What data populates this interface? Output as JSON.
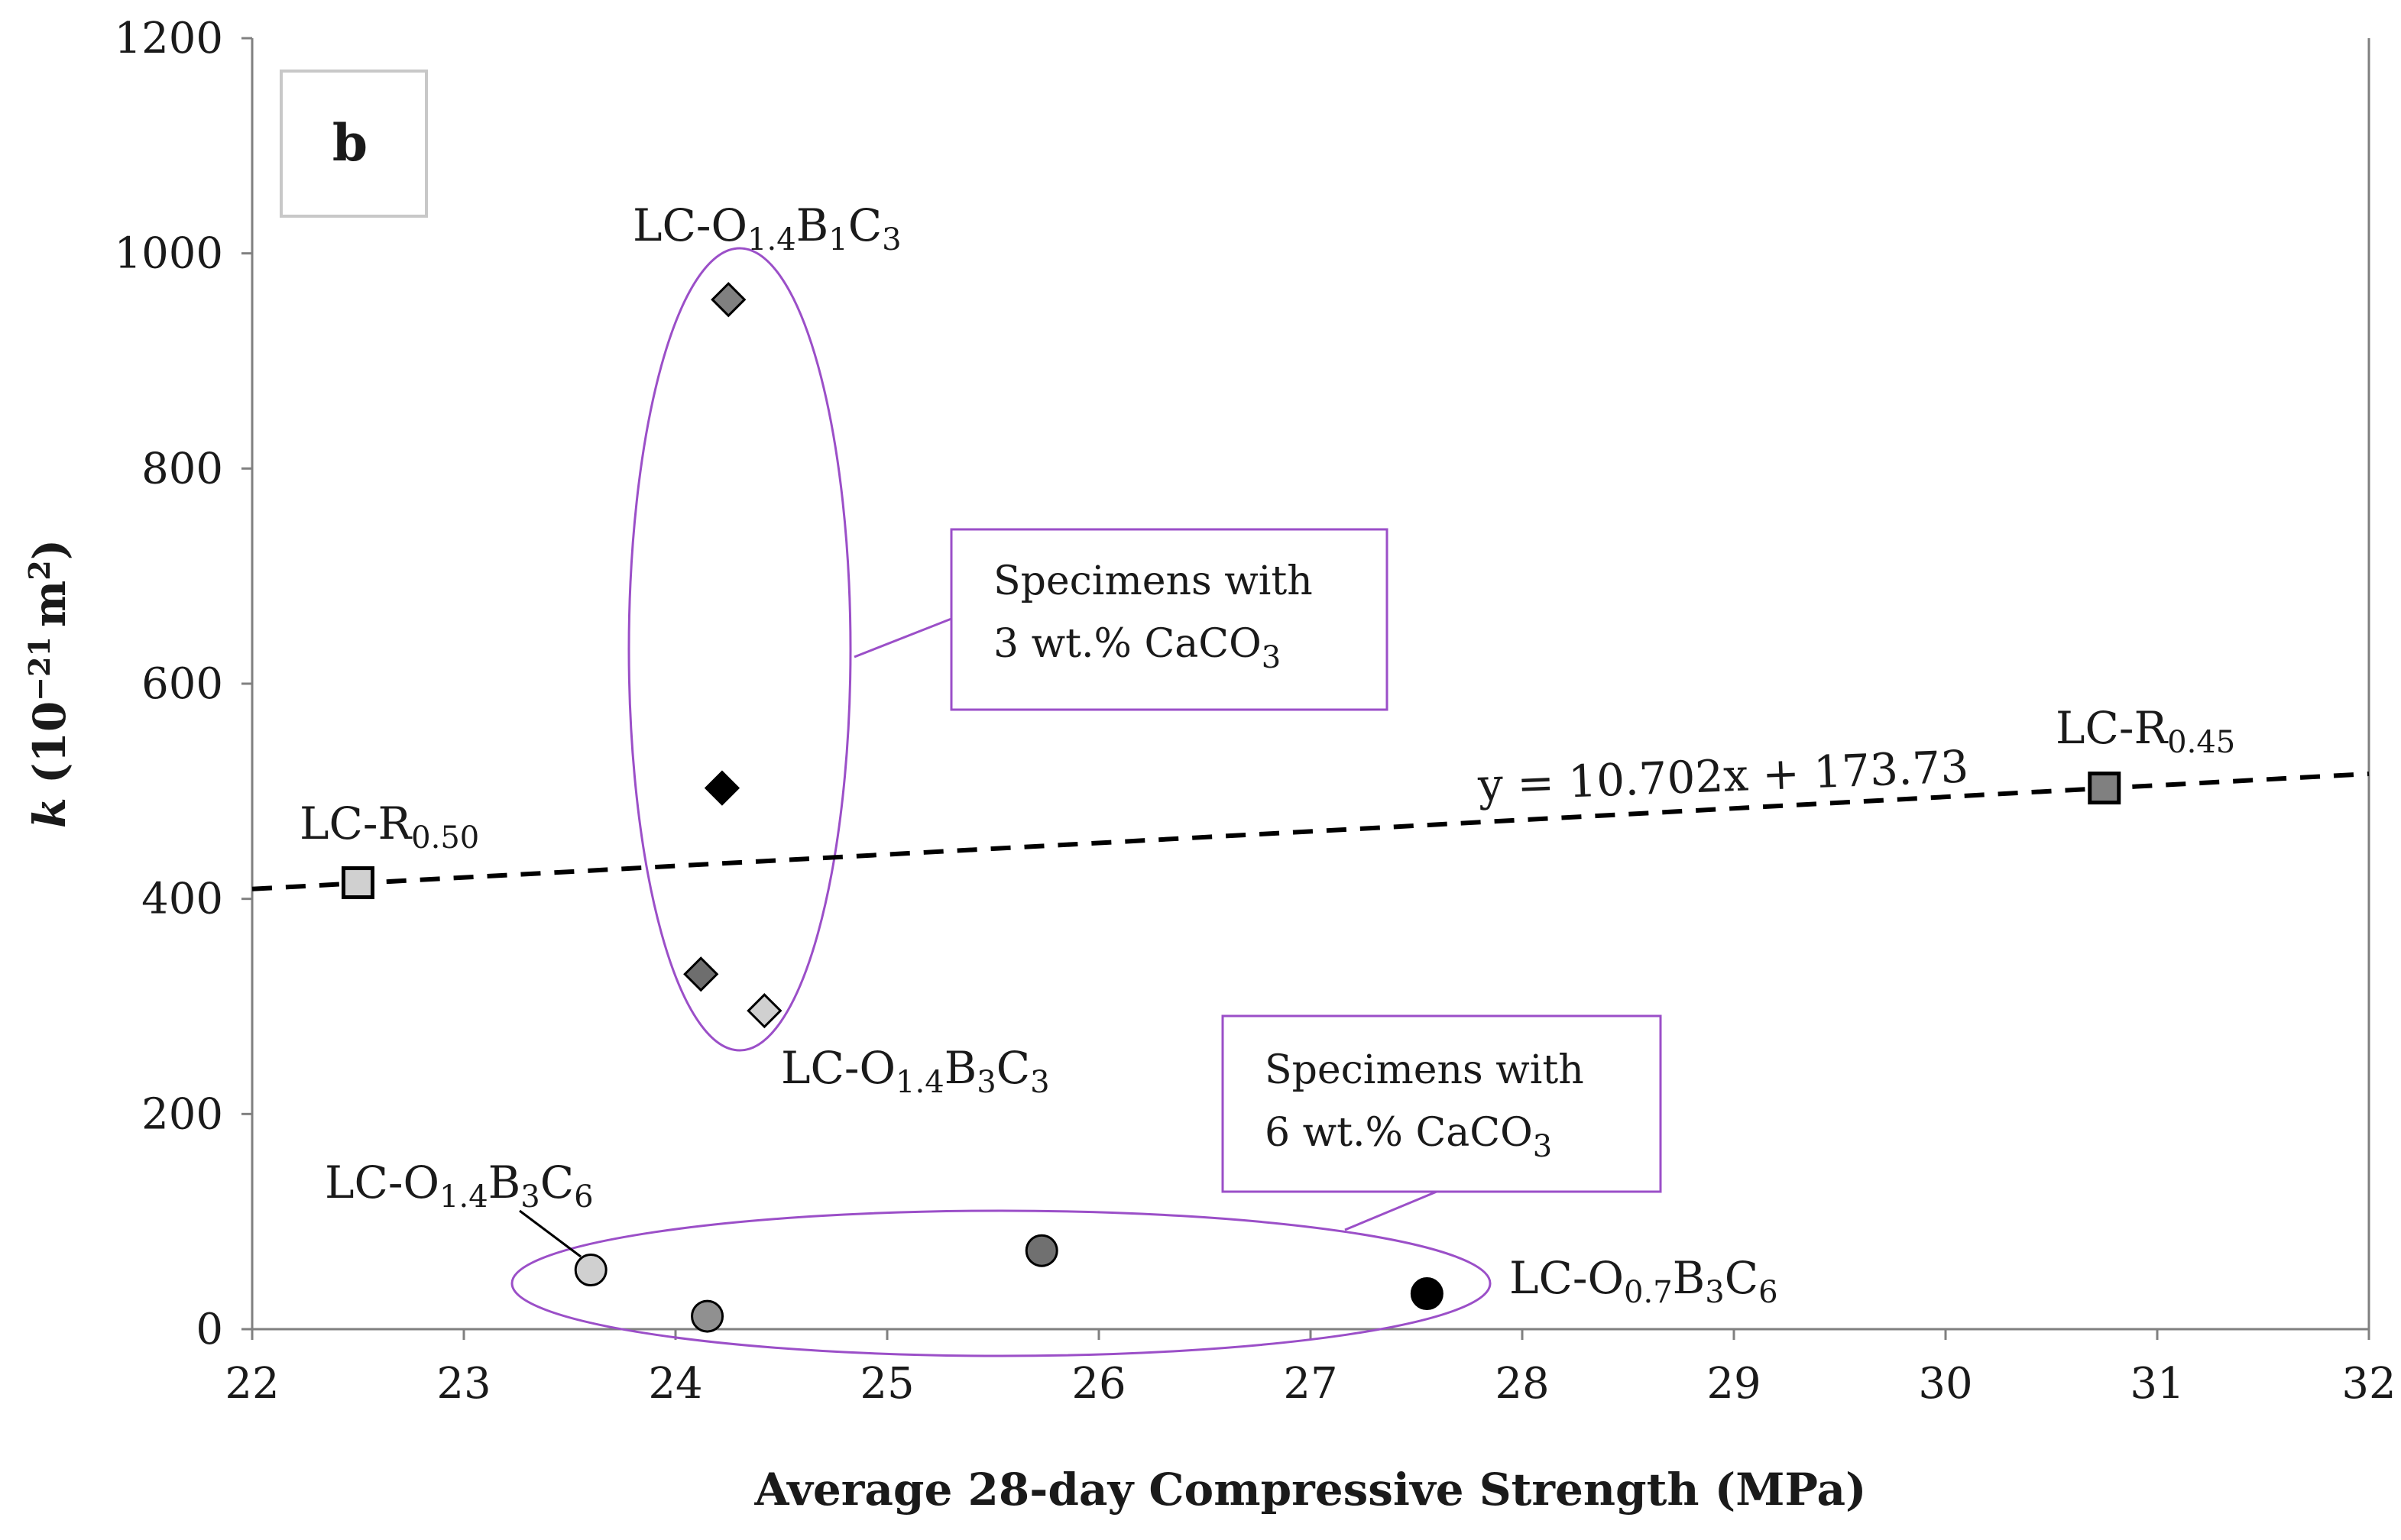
{
  "chart_data": {
    "type": "scatter",
    "panel_label": "b",
    "xlabel": "Average 28-day Compressive Strength (MPa)",
    "ylabel_main": "k",
    "ylabel_rest": "(10",
    "ylabel_exp": "−21",
    "ylabel_unit": "m",
    "ylabel_unit_exp": "2",
    "ylabel_close": ")",
    "xlim": [
      22,
      32
    ],
    "ylim": [
      0,
      1200
    ],
    "x_ticks": [
      "22",
      "23",
      "24",
      "25",
      "26",
      "27",
      "28",
      "29",
      "30",
      "31",
      "32"
    ],
    "y_ticks": [
      "0",
      "200",
      "400",
      "600",
      "800",
      "1000",
      "1200"
    ],
    "grid": false,
    "points": [
      {
        "x": 22.5,
        "y": 415,
        "marker": "square",
        "color": "#d0d0d0"
      },
      {
        "x": 30.75,
        "y": 503,
        "marker": "square",
        "color": "#808080"
      },
      {
        "x": 24.25,
        "y": 957,
        "marker": "diamond",
        "color": "#808080"
      },
      {
        "x": 24.22,
        "y": 503,
        "marker": "diamond",
        "color": "#000000"
      },
      {
        "x": 24.12,
        "y": 330,
        "marker": "diamond",
        "color": "#6e6e6e"
      },
      {
        "x": 24.42,
        "y": 296,
        "marker": "diamond",
        "color": "#d0d0d0"
      },
      {
        "x": 23.6,
        "y": 55,
        "marker": "circle",
        "color": "#d0d0d0"
      },
      {
        "x": 24.15,
        "y": 12,
        "marker": "circle",
        "color": "#909090"
      },
      {
        "x": 25.73,
        "y": 73,
        "marker": "circle",
        "color": "#707070"
      },
      {
        "x": 27.55,
        "y": 33,
        "marker": "circle",
        "color": "#000000"
      }
    ],
    "trendline": {
      "slope": 10.702,
      "intercept": 173.73,
      "x_range": [
        22,
        32
      ],
      "equation": "y = 10.702x + 173.73"
    },
    "annotations": {
      "lc_r050": {
        "base": "LC-R",
        "s1": "0.50"
      },
      "lc_r045": {
        "base": "LC-R",
        "s1": "0.45"
      },
      "lc_o14b1c3": {
        "p1": "LC-O",
        "s1": "1.4",
        "p2": "B",
        "s2": "1",
        "p3": "C",
        "s3": "3"
      },
      "lc_o14b3c3": {
        "p1": "LC-O",
        "s1": "1.4",
        "p2": "B",
        "s2": "3",
        "p3": "C",
        "s3": "3"
      },
      "lc_o14b3c6": {
        "p1": "LC-O",
        "s1": "1.4",
        "p2": "B",
        "s2": "3",
        "p3": "C",
        "s3": "6"
      },
      "lc_o07b3c6": {
        "p1": "LC-O",
        "s1": "0.7",
        "p2": "B",
        "s2": "3",
        "p3": "C",
        "s3": "6"
      }
    },
    "callouts": {
      "group3": {
        "line1": "Specimens with",
        "line2a": "3 wt.% CaCO",
        "line2sub": "3"
      },
      "group6": {
        "line1": "Specimens with",
        "line2a": "6 wt.% CaCO",
        "line2sub": "3"
      }
    },
    "colors": {
      "axis": "#808080",
      "ellipse": "#9b4fc8",
      "trendline": "#000000"
    }
  }
}
